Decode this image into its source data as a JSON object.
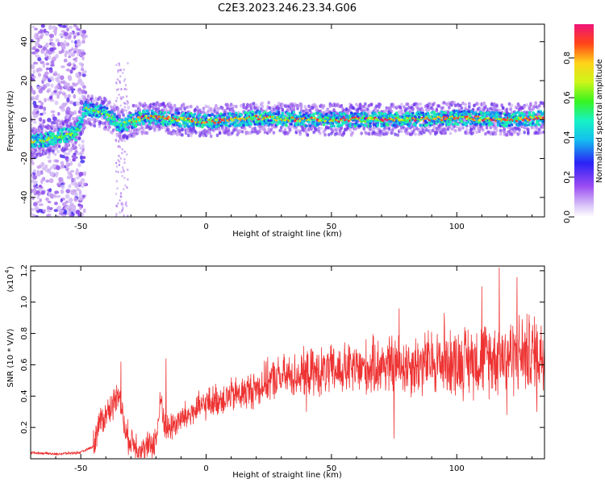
{
  "title": "C2E3.2023.246.23.34.G06",
  "colors": {
    "line": "#ee3333",
    "axis": "#000000",
    "colormap": [
      "#e9f2ff",
      "#c79cf0",
      "#7a35ea",
      "#2a2cf2",
      "#15b6ee",
      "#1bf5c0",
      "#48f52b",
      "#ccf31b",
      "#ffb41a",
      "#ff4718",
      "#ef1470"
    ]
  },
  "chart_data": [
    {
      "type": "heatmap",
      "title": "C2E3.2023.246.23.34.G06",
      "xlabel": "Height of straight line (km)",
      "ylabel": "Frequency (Hz)",
      "xlim": [
        -70,
        135
      ],
      "ylim": [
        -50,
        49
      ],
      "x_ticks": [
        -50,
        0,
        50,
        100
      ],
      "y_ticks": [
        -40,
        -20,
        0,
        20,
        40
      ],
      "colorbar": {
        "label": "Normalized spectral amplitude",
        "range": [
          0,
          0.97
        ],
        "ticks": [
          0.0,
          0.2,
          0.4,
          0.6,
          0.8
        ]
      },
      "ridge": [
        {
          "x": -70,
          "y": -12
        },
        {
          "x": -60,
          "y": -9
        },
        {
          "x": -52,
          "y": -7
        },
        {
          "x": -48,
          "y": 6
        },
        {
          "x": -40,
          "y": 3
        },
        {
          "x": -34,
          "y": -3
        },
        {
          "x": -30,
          "y": -1
        },
        {
          "x": -25,
          "y": 1
        },
        {
          "x": -20,
          "y": 1
        },
        {
          "x": 0,
          "y": -1
        },
        {
          "x": 20,
          "y": 1
        },
        {
          "x": 40,
          "y": 0
        },
        {
          "x": 60,
          "y": 0
        },
        {
          "x": 80,
          "y": 0
        },
        {
          "x": 100,
          "y": 1
        },
        {
          "x": 120,
          "y": 0
        },
        {
          "x": 135,
          "y": 1
        }
      ]
    },
    {
      "type": "line",
      "xlabel": "Height of straight line (km)",
      "ylabel": "SNR (10 * V/V)",
      "y_multiplier": "(x10",
      "y_multiplier_exp": "4",
      "xlim": [
        -70,
        135
      ],
      "ylim": [
        0,
        1.23
      ],
      "x_ticks": [
        -50,
        0,
        50,
        100
      ],
      "y_ticks": [
        0.2,
        0.4,
        0.6,
        0.8,
        1.0,
        1.2
      ],
      "series": [
        {
          "x": [
            -70,
            -60,
            -50,
            -45,
            -43,
            -40,
            -37,
            -35,
            -32,
            -30,
            -25,
            -20,
            -18,
            -16,
            -13,
            -10,
            -5,
            0,
            5,
            10,
            15,
            20,
            25,
            30,
            35,
            40,
            45,
            50,
            55,
            60,
            65,
            70,
            75,
            80,
            85,
            90,
            95,
            100,
            105,
            110,
            115,
            120,
            125,
            130,
            135
          ],
          "values": [
            0.04,
            0.03,
            0.04,
            0.08,
            0.22,
            0.28,
            0.35,
            0.45,
            0.15,
            0.12,
            0.05,
            0.12,
            0.38,
            0.18,
            0.22,
            0.25,
            0.3,
            0.35,
            0.38,
            0.4,
            0.42,
            0.45,
            0.5,
            0.52,
            0.53,
            0.55,
            0.55,
            0.56,
            0.57,
            0.57,
            0.58,
            0.6,
            0.6,
            0.6,
            0.6,
            0.62,
            0.62,
            0.62,
            0.63,
            0.64,
            0.65,
            0.66,
            0.67,
            0.67,
            0.68
          ],
          "peaks": [
            {
              "x": -34,
              "y": 0.62
            },
            {
              "x": -16,
              "y": 0.64
            },
            {
              "x": 77,
              "y": 0.96
            },
            {
              "x": 95,
              "y": 0.93
            },
            {
              "x": 110,
              "y": 1.1
            },
            {
              "x": 117,
              "y": 1.22
            },
            {
              "x": 124,
              "y": 1.16
            },
            {
              "x": 132,
              "y": 0.95
            }
          ],
          "troughs": [
            {
              "x": 75,
              "y": 0.13
            },
            {
              "x": 40,
              "y": 0.3
            },
            {
              "x": 120,
              "y": 0.28
            },
            {
              "x": 132,
              "y": 0.3
            }
          ]
        }
      ]
    }
  ]
}
